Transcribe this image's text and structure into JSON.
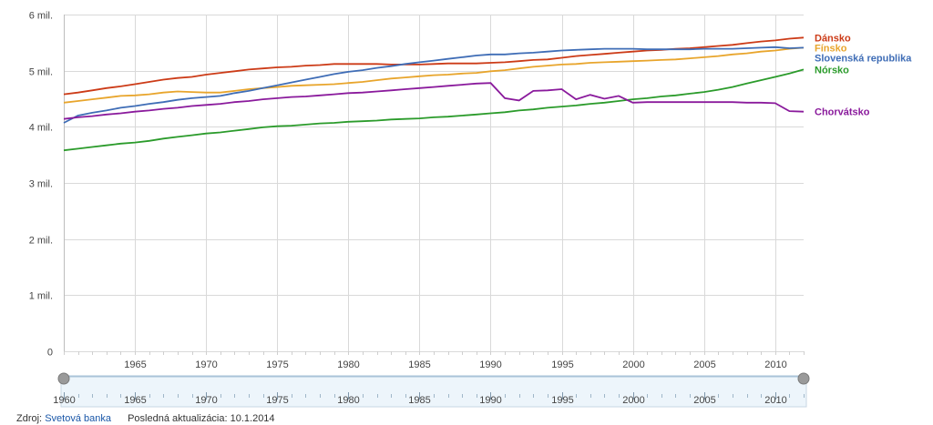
{
  "chart_data": {
    "type": "line",
    "x": [
      1960,
      1961,
      1962,
      1963,
      1964,
      1965,
      1966,
      1967,
      1968,
      1969,
      1970,
      1971,
      1972,
      1973,
      1974,
      1975,
      1976,
      1977,
      1978,
      1979,
      1980,
      1981,
      1982,
      1983,
      1984,
      1985,
      1986,
      1987,
      1988,
      1989,
      1990,
      1991,
      1992,
      1993,
      1994,
      1995,
      1996,
      1997,
      1998,
      1999,
      2000,
      2001,
      2002,
      2003,
      2004,
      2005,
      2006,
      2007,
      2008,
      2009,
      2010,
      2011,
      2012
    ],
    "xlim": [
      1960,
      2012
    ],
    "ylim": [
      0,
      6000000
    ],
    "yticks": [
      0,
      1000000,
      2000000,
      3000000,
      4000000,
      5000000,
      6000000
    ],
    "ytick_labels": [
      "0",
      "1 mil.",
      "2 mil.",
      "3 mil.",
      "4 mil.",
      "5 mil.",
      "6 mil."
    ],
    "xticks": [
      1965,
      1970,
      1975,
      1980,
      1985,
      1990,
      1995,
      2000,
      2005,
      2010
    ],
    "xtick_labels": [
      "1965",
      "1970",
      "1975",
      "1980",
      "1985",
      "1990",
      "1995",
      "2000",
      "2005",
      "2010"
    ],
    "grid": true,
    "legend": "right, end-of-line labels",
    "series": [
      {
        "name": "Dánsko",
        "color": "#cc3b17",
        "values": [
          4580000,
          4610000,
          4650000,
          4690000,
          4720000,
          4760000,
          4800000,
          4840000,
          4870000,
          4890000,
          4930000,
          4960000,
          4990000,
          5020000,
          5040000,
          5060000,
          5070000,
          5090000,
          5100000,
          5120000,
          5120000,
          5120000,
          5120000,
          5110000,
          5110000,
          5110000,
          5120000,
          5130000,
          5130000,
          5130000,
          5140000,
          5150000,
          5170000,
          5190000,
          5200000,
          5230000,
          5260000,
          5280000,
          5300000,
          5320000,
          5340000,
          5360000,
          5370000,
          5390000,
          5400000,
          5420000,
          5440000,
          5460000,
          5490000,
          5520000,
          5540000,
          5570000,
          5590000
        ]
      },
      {
        "name": "Fínsko",
        "color": "#e8a52c",
        "values": [
          4430000,
          4460000,
          4490000,
          4520000,
          4550000,
          4560000,
          4580000,
          4610000,
          4630000,
          4620000,
          4610000,
          4610000,
          4640000,
          4670000,
          4690000,
          4710000,
          4730000,
          4740000,
          4750000,
          4760000,
          4780000,
          4800000,
          4830000,
          4860000,
          4880000,
          4900000,
          4920000,
          4930000,
          4950000,
          4960000,
          4990000,
          5010000,
          5040000,
          5070000,
          5090000,
          5110000,
          5120000,
          5140000,
          5150000,
          5160000,
          5170000,
          5180000,
          5190000,
          5200000,
          5220000,
          5240000,
          5260000,
          5290000,
          5310000,
          5340000,
          5360000,
          5390000,
          5410000
        ]
      },
      {
        "name": "Slovenská republika",
        "color": "#3f6db6",
        "values": [
          4070000,
          4200000,
          4250000,
          4290000,
          4340000,
          4370000,
          4410000,
          4440000,
          4480000,
          4510000,
          4530000,
          4550000,
          4600000,
          4640000,
          4690000,
          4740000,
          4790000,
          4840000,
          4890000,
          4940000,
          4980000,
          5010000,
          5050000,
          5080000,
          5120000,
          5150000,
          5180000,
          5210000,
          5240000,
          5270000,
          5290000,
          5290000,
          5310000,
          5320000,
          5340000,
          5360000,
          5370000,
          5380000,
          5390000,
          5390000,
          5390000,
          5380000,
          5380000,
          5380000,
          5380000,
          5390000,
          5390000,
          5390000,
          5400000,
          5410000,
          5420000,
          5400000,
          5410000
        ]
      },
      {
        "name": "Nórsko",
        "color": "#2b9b2b",
        "values": [
          3580000,
          3610000,
          3640000,
          3670000,
          3700000,
          3720000,
          3750000,
          3790000,
          3820000,
          3850000,
          3880000,
          3900000,
          3930000,
          3960000,
          3990000,
          4010000,
          4020000,
          4040000,
          4060000,
          4070000,
          4090000,
          4100000,
          4110000,
          4130000,
          4140000,
          4150000,
          4170000,
          4180000,
          4200000,
          4220000,
          4240000,
          4260000,
          4290000,
          4310000,
          4340000,
          4360000,
          4380000,
          4410000,
          4430000,
          4460000,
          4490000,
          4510000,
          4540000,
          4560000,
          4590000,
          4620000,
          4660000,
          4710000,
          4770000,
          4830000,
          4890000,
          4950000,
          5020000
        ]
      },
      {
        "name": "Chorvátsko",
        "color": "#8a1a9c",
        "values": [
          4140000,
          4170000,
          4190000,
          4220000,
          4240000,
          4270000,
          4290000,
          4320000,
          4340000,
          4370000,
          4390000,
          4410000,
          4440000,
          4460000,
          4490000,
          4510000,
          4530000,
          4540000,
          4560000,
          4580000,
          4600000,
          4610000,
          4630000,
          4650000,
          4670000,
          4690000,
          4710000,
          4730000,
          4750000,
          4770000,
          4780000,
          4510000,
          4470000,
          4640000,
          4650000,
          4670000,
          4490000,
          4570000,
          4500000,
          4550000,
          4430000,
          4440000,
          4440000,
          4440000,
          4440000,
          4440000,
          4440000,
          4440000,
          4430000,
          4430000,
          4420000,
          4280000,
          4270000
        ]
      }
    ]
  },
  "slider": {
    "tick_labels": [
      "1960",
      "1965",
      "1970",
      "1975",
      "1980",
      "1985",
      "1990",
      "1995",
      "2000",
      "2005",
      "2010"
    ],
    "tick_years": [
      1960,
      1965,
      1970,
      1975,
      1980,
      1985,
      1990,
      1995,
      2000,
      2005,
      2010
    ],
    "track_color": "#edf5fb",
    "handle_color": "#9a9a9a"
  },
  "footer": {
    "source_prefix": "Zdroj:",
    "source_link": "Svetová banka",
    "updated": "Posledná aktualizácia: 10.1.2014"
  }
}
